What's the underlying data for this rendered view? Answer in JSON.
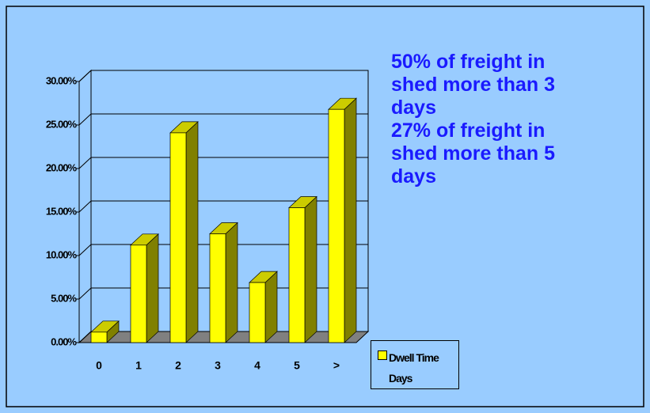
{
  "chart_data": {
    "type": "bar3d",
    "categories": [
      "0",
      "1",
      "2",
      "3",
      "4",
      "5",
      ">"
    ],
    "series": [
      {
        "name": "Dwell Time Days",
        "color": "#ffff00",
        "values": [
          1.2,
          11.2,
          24.1,
          12.5,
          6.9,
          15.5,
          26.8
        ]
      }
    ],
    "ylim": [
      0,
      30
    ],
    "yticks": [
      {
        "value": 0,
        "label": "0.00%"
      },
      {
        "value": 5,
        "label": "5.00%"
      },
      {
        "value": 10,
        "label": "10.00%"
      },
      {
        "value": 15,
        "label": "15.00%"
      },
      {
        "value": 20,
        "label": "20.00%"
      },
      {
        "value": 25,
        "label": "25.00%"
      },
      {
        "value": 30,
        "label": "30.00%"
      }
    ],
    "grid": true,
    "annotation": [
      "50% of freight in",
      "shed more than 3",
      "days",
      "27% of freight in",
      "shed more than 5",
      "days"
    ]
  }
}
